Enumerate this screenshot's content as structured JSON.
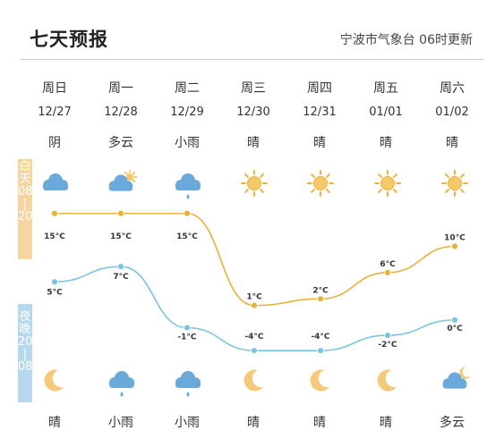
{
  "header": {
    "title": "七天预报",
    "source": "宁波市气象台 06时更新"
  },
  "bands": {
    "day_label": "白\n天\n08\n|\n20",
    "night_label": "夜\n晚\n20\n|\n08"
  },
  "colors": {
    "day_line": "#e8b13a",
    "night_line": "#7cc4e3",
    "day_band": "#f6d6a0",
    "night_band": "#b5d8ec"
  },
  "days": [
    {
      "dow": "周日",
      "date": "12/27",
      "day_weather": "阴",
      "night_weather": "晴",
      "day_icon": "cloud-icon",
      "night_icon": "moon-icon"
    },
    {
      "dow": "周一",
      "date": "12/28",
      "day_weather": "多云",
      "night_weather": "小雨",
      "day_icon": "partly-cloudy-icon",
      "night_icon": "rain-cloud-icon"
    },
    {
      "dow": "周二",
      "date": "12/29",
      "day_weather": "小雨",
      "night_weather": "小雨",
      "day_icon": "rain-cloud-icon",
      "night_icon": "rain-cloud-icon"
    },
    {
      "dow": "周三",
      "date": "12/30",
      "day_weather": "晴",
      "night_weather": "晴",
      "day_icon": "sun-icon",
      "night_icon": "moon-icon"
    },
    {
      "dow": "周四",
      "date": "12/31",
      "day_weather": "晴",
      "night_weather": "晴",
      "day_icon": "sun-icon",
      "night_icon": "moon-icon"
    },
    {
      "dow": "周五",
      "date": "01/01",
      "day_weather": "晴",
      "night_weather": "晴",
      "day_icon": "sun-icon",
      "night_icon": "moon-icon"
    },
    {
      "dow": "周六",
      "date": "01/02",
      "day_weather": "晴",
      "night_weather": "多云",
      "day_icon": "sun-icon",
      "night_icon": "cloudy-night-icon"
    }
  ],
  "chart_data": {
    "type": "line",
    "categories": [
      "12/27",
      "12/28",
      "12/29",
      "12/30",
      "12/31",
      "01/01",
      "01/02"
    ],
    "unit": "°C",
    "series": [
      {
        "values": [
          15,
          15,
          15,
          1,
          2,
          6,
          10
        ]
      },
      {
        "values": [
          5,
          7,
          -1,
          -4,
          -4,
          -2,
          0
        ]
      }
    ]
  }
}
